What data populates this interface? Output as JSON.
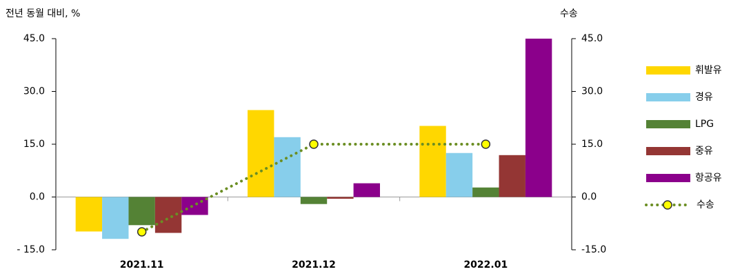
{
  "chart_data": {
    "type": "bar",
    "y_label": "전년 동월 대비, %",
    "y2_label": "수송",
    "categories": [
      "2021.11",
      "2021.12",
      "2022.01"
    ],
    "series": [
      {
        "name": "휘발유",
        "color": "#ffd700",
        "values": [
          -9.8,
          24.7,
          20.2
        ]
      },
      {
        "name": "경유",
        "color": "#87ceeb",
        "values": [
          -11.9,
          17.0,
          12.5
        ]
      },
      {
        "name": "LPG",
        "color": "#548235",
        "values": [
          -8.0,
          -2.0,
          2.7
        ]
      },
      {
        "name": "중유",
        "color": "#943634",
        "values": [
          -10.2,
          -0.5,
          11.9
        ]
      },
      {
        "name": "항공유",
        "color": "#8b008b",
        "values": [
          -5.1,
          3.9,
          45.0
        ]
      },
      {
        "name": "수송",
        "type": "line",
        "axis": "y2",
        "color": "#6b8e23",
        "marker_color": "#ffff00",
        "values": [
          -9.9,
          15.0,
          15.0
        ]
      }
    ],
    "ylim": [
      -15,
      45
    ],
    "yticks": [
      {
        "value": 45,
        "label": "45.0"
      },
      {
        "value": 30,
        "label": "30.0"
      },
      {
        "value": 15,
        "label": "15.0"
      },
      {
        "value": 0,
        "label": "0.0"
      },
      {
        "value": -15,
        "label": "- 15.0"
      }
    ],
    "y2lim": [
      -15,
      45
    ],
    "y2ticks": [
      {
        "value": 45,
        "label": "45.0"
      },
      {
        "value": 30,
        "label": "30.0"
      },
      {
        "value": 15,
        "label": "15.0"
      },
      {
        "value": 0,
        "label": "0.0"
      },
      {
        "value": -15,
        "label": "-15.0"
      }
    ],
    "legend": "right"
  }
}
